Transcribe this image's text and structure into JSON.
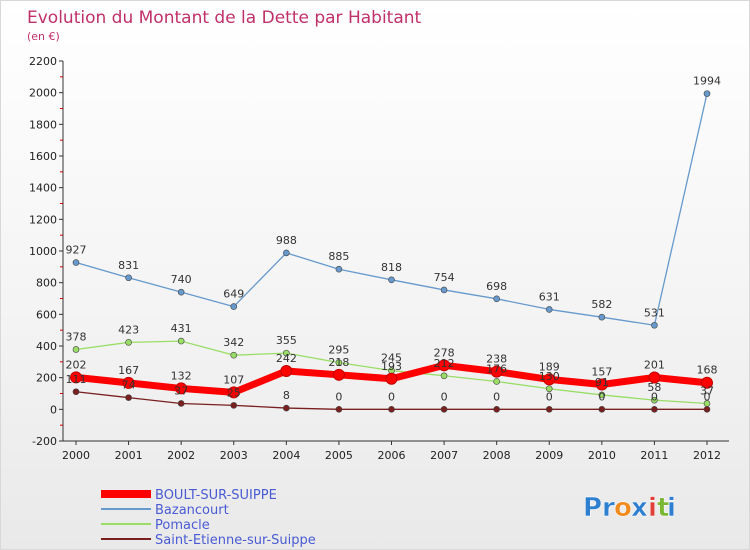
{
  "chart_data": {
    "type": "line",
    "title": "Evolution du Montant de la Dette par Habitant",
    "subtitle": "(en €)",
    "xlabel": "",
    "ylabel": "",
    "x": [
      "2000",
      "2001",
      "2002",
      "2003",
      "2004",
      "2005",
      "2006",
      "2007",
      "2008",
      "2009",
      "2010",
      "2011",
      "2012"
    ],
    "ylim": [
      -200,
      2200
    ],
    "yticks": [
      -200,
      0,
      200,
      400,
      600,
      800,
      1000,
      1200,
      1400,
      1600,
      1800,
      2000,
      2200
    ],
    "grid": false,
    "legend_position": "bottom-left",
    "series": [
      {
        "name": "BOULT-SUR-SUIPPE",
        "color": "#ff0000",
        "values": [
          202,
          167,
          132,
          107,
          242,
          218,
          193,
          278,
          238,
          189,
          157,
          201,
          168
        ]
      },
      {
        "name": "Bazancourt",
        "color": "#6699cc",
        "values": [
          927,
          831,
          740,
          649,
          988,
          885,
          818,
          754,
          698,
          631,
          582,
          531,
          1994
        ]
      },
      {
        "name": "Pomacle",
        "color": "#99dd66",
        "values": [
          378,
          423,
          431,
          342,
          355,
          295,
          245,
          212,
          176,
          130,
          91,
          58,
          37
        ]
      },
      {
        "name": "Saint-Etienne-sur-Suippe",
        "color": "#7a1f1f",
        "values": [
          111,
          74,
          37,
          25,
          8,
          0,
          0,
          0,
          0,
          0,
          0,
          0,
          0
        ]
      }
    ]
  },
  "logo": {
    "letters": [
      "P",
      "r",
      "o",
      "x",
      "i",
      "t",
      "i"
    ],
    "colors": [
      "#2f7fd0",
      "#2f7fd0",
      "#f08a1c",
      "#2f7fd0",
      "#e0403a",
      "#7ab833",
      "#2f7fd0"
    ]
  }
}
